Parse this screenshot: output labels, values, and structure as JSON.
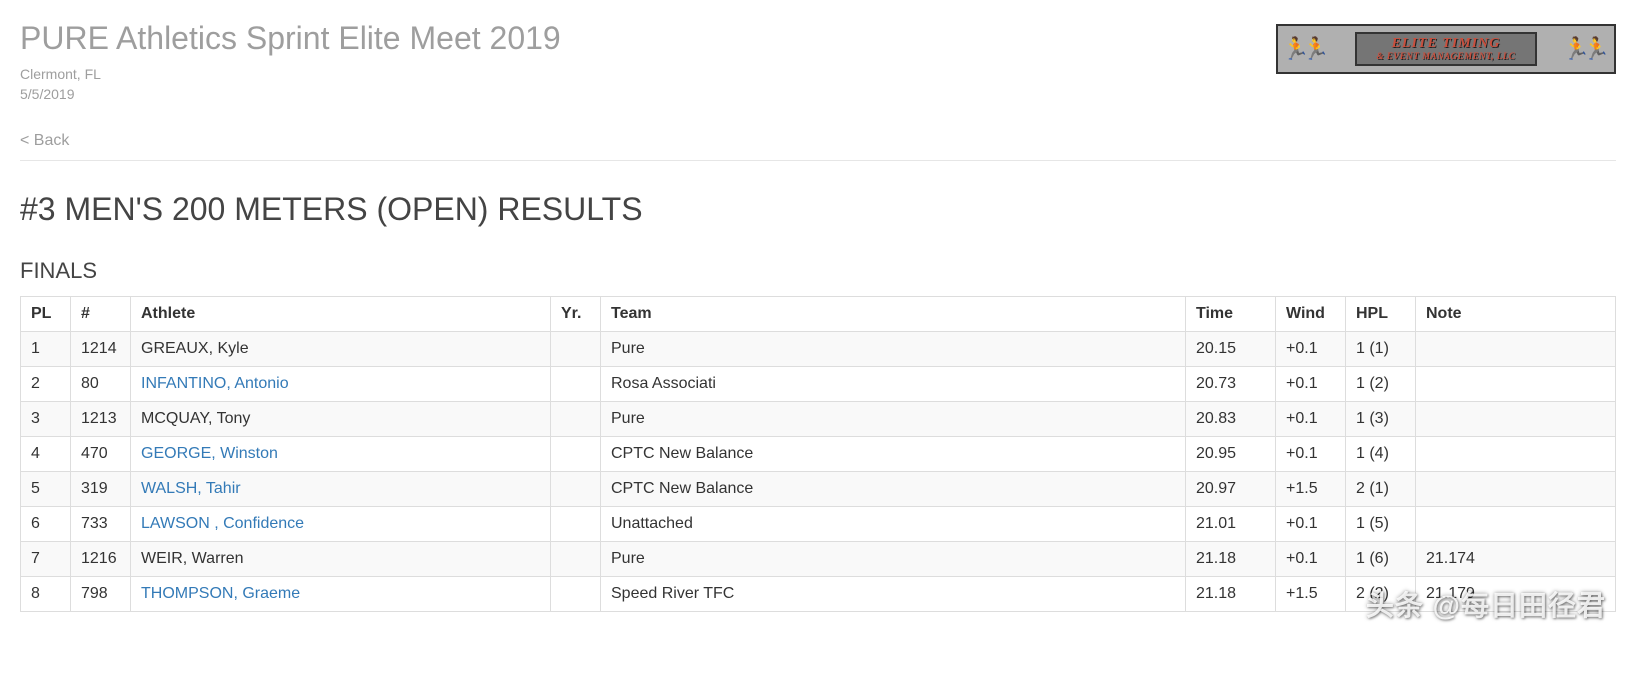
{
  "header": {
    "meet_title": "PURE Athletics Sprint Elite Meet 2019",
    "location": "Clermont, FL",
    "date": "5/5/2019",
    "back_label": "< Back",
    "logo_line1": "ELITE TIMING",
    "logo_line2": "& EVENT MANAGEMENT, LLC"
  },
  "event": {
    "title": "#3 MEN'S 200 METERS (OPEN) RESULTS",
    "section": "FINALS"
  },
  "columns": {
    "pl": "PL",
    "num": "#",
    "athlete": "Athlete",
    "yr": "Yr.",
    "team": "Team",
    "time": "Time",
    "wind": "Wind",
    "hpl": "HPL",
    "note": "Note"
  },
  "rows": [
    {
      "pl": "1",
      "num": "1214",
      "athlete": "GREAUX, Kyle",
      "link": false,
      "yr": "",
      "team": "Pure",
      "time": "20.15",
      "wind": "+0.1",
      "hpl": "1 (1)",
      "note": ""
    },
    {
      "pl": "2",
      "num": "80",
      "athlete": "INFANTINO, Antonio",
      "link": true,
      "yr": "",
      "team": "Rosa Associati",
      "time": "20.73",
      "wind": "+0.1",
      "hpl": "1 (2)",
      "note": ""
    },
    {
      "pl": "3",
      "num": "1213",
      "athlete": "MCQUAY, Tony",
      "link": false,
      "yr": "",
      "team": "Pure",
      "time": "20.83",
      "wind": "+0.1",
      "hpl": "1 (3)",
      "note": ""
    },
    {
      "pl": "4",
      "num": "470",
      "athlete": "GEORGE, Winston",
      "link": true,
      "yr": "",
      "team": "CPTC New Balance",
      "time": "20.95",
      "wind": "+0.1",
      "hpl": "1 (4)",
      "note": ""
    },
    {
      "pl": "5",
      "num": "319",
      "athlete": "WALSH, Tahir",
      "link": true,
      "yr": "",
      "team": "CPTC New Balance",
      "time": "20.97",
      "wind": "+1.5",
      "hpl": "2 (1)",
      "note": ""
    },
    {
      "pl": "6",
      "num": "733",
      "athlete": "LAWSON , Confidence",
      "link": true,
      "yr": "",
      "team": "Unattached",
      "time": "21.01",
      "wind": "+0.1",
      "hpl": "1 (5)",
      "note": ""
    },
    {
      "pl": "7",
      "num": "1216",
      "athlete": "WEIR, Warren",
      "link": false,
      "yr": "",
      "team": "Pure",
      "time": "21.18",
      "wind": "+0.1",
      "hpl": "1 (6)",
      "note": "21.174"
    },
    {
      "pl": "8",
      "num": "798",
      "athlete": "THOMPSON, Graeme",
      "link": true,
      "yr": "",
      "team": "Speed River TFC",
      "time": "21.18",
      "wind": "+1.5",
      "hpl": "2 (2)",
      "note": "21.179"
    }
  ],
  "watermark": "头条 @每日田径君",
  "style": {
    "link_color": "#337ab7",
    "muted_color": "#9e9e9e",
    "heading_color": "#444444",
    "border_color": "#dddddd",
    "row_stripe": "#f9f9f9",
    "background": "#ffffff"
  }
}
